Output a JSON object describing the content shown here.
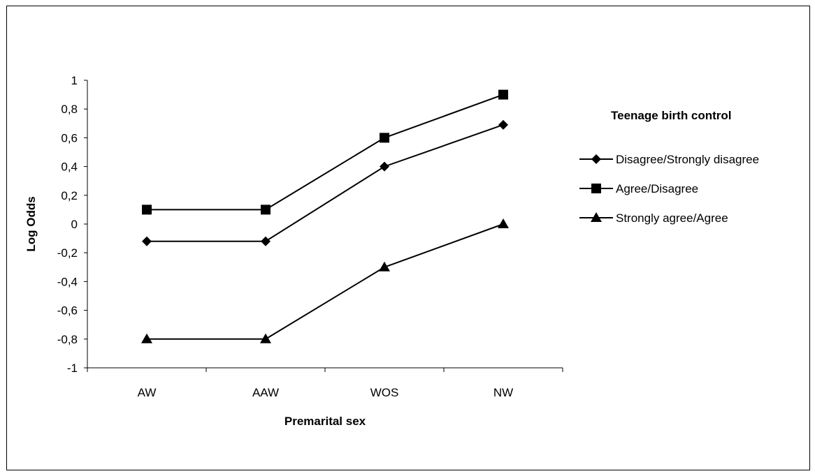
{
  "chart_data": {
    "type": "line",
    "title": "",
    "xlabel": "Premarital sex",
    "ylabel": "Log Odds",
    "categories": [
      "AW",
      "AAW",
      "WOS",
      "NW"
    ],
    "ylim": [
      -1,
      1
    ],
    "yticks": [
      1,
      0.8,
      0.6,
      0.4,
      0.2,
      0,
      -0.2,
      -0.4,
      -0.6,
      -0.8,
      -1
    ],
    "ytick_labels": [
      "1",
      "0,8",
      "0,6",
      "0,4",
      "0,2",
      "0",
      "-0,2",
      "-0,4",
      "-0,6",
      "-0,8",
      "-1"
    ],
    "grid": false,
    "legend_position": "right",
    "legend_title": "Teenage birth control",
    "series": [
      {
        "name": "Disagree/Strongly disagree",
        "marker": "diamond",
        "values": [
          -0.12,
          -0.12,
          0.4,
          0.69
        ]
      },
      {
        "name": "Agree/Disagree",
        "marker": "square",
        "values": [
          0.1,
          0.1,
          0.6,
          0.9
        ]
      },
      {
        "name": "Strongly agree/Agree",
        "marker": "triangle",
        "values": [
          -0.8,
          -0.8,
          -0.3,
          0.0
        ]
      }
    ],
    "line_color": "#000000"
  }
}
